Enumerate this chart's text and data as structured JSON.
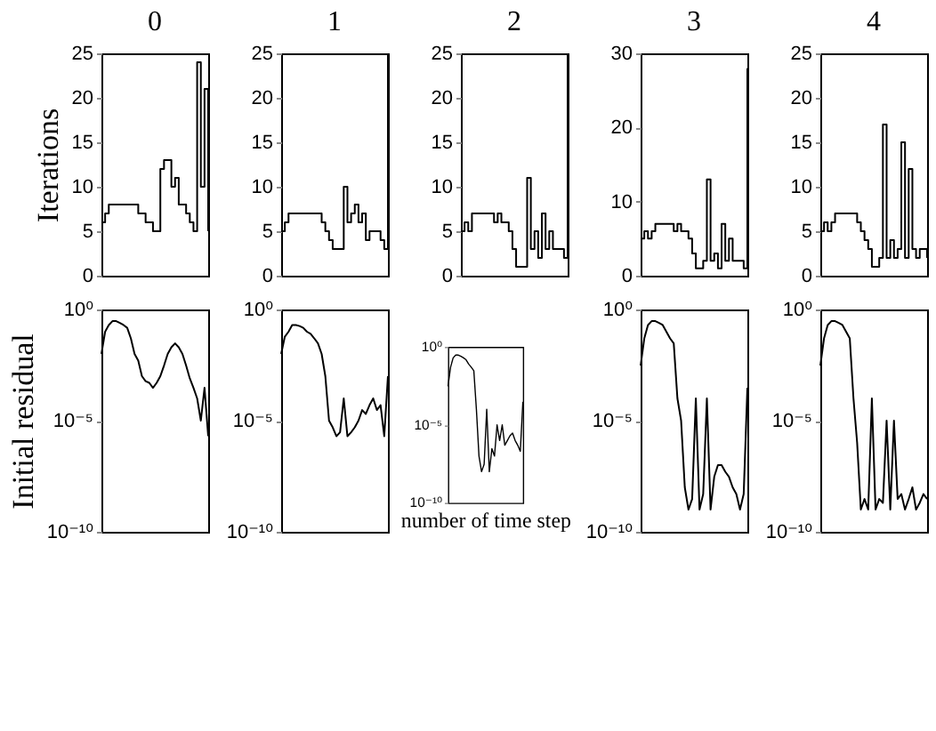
{
  "chart_data": [
    {
      "type": "step",
      "title": "0",
      "ylabel": "Iterations",
      "categories": [
        null,
        null,
        null,
        null,
        null,
        null,
        null,
        null,
        null,
        null,
        null,
        null,
        null,
        null,
        null,
        null,
        null,
        null,
        null,
        null,
        null,
        null,
        null,
        null,
        null,
        null,
        null,
        null,
        null,
        null
      ],
      "values": [
        6,
        7,
        8,
        8,
        8,
        8,
        8,
        8,
        8,
        8,
        7,
        7,
        6,
        6,
        5,
        5,
        12,
        13,
        13,
        10,
        11,
        8,
        8,
        7,
        6,
        5,
        24,
        10,
        21,
        5
      ],
      "color": "#000000",
      "ylim": [
        0,
        25
      ],
      "yticks": [
        0,
        5,
        10,
        15,
        20,
        25
      ],
      "tick_labels": "y"
    },
    {
      "type": "step",
      "title": "1",
      "categories": [
        null,
        null,
        null,
        null,
        null,
        null,
        null,
        null,
        null,
        null,
        null,
        null,
        null,
        null,
        null,
        null,
        null,
        null,
        null,
        null,
        null,
        null,
        null,
        null,
        null,
        null,
        null,
        null,
        null,
        null
      ],
      "values": [
        5,
        6,
        7,
        7,
        7,
        7,
        7,
        7,
        7,
        7,
        7,
        6,
        5,
        4,
        3,
        3,
        3,
        10,
        6,
        7,
        8,
        6,
        7,
        4,
        5,
        5,
        5,
        4,
        3,
        25
      ],
      "color": "#000000",
      "ylim": [
        0,
        25
      ],
      "yticks": [
        0,
        5,
        10,
        15,
        20,
        25
      ],
      "tick_labels": "y"
    },
    {
      "type": "step",
      "title": "2",
      "categories": [
        null,
        null,
        null,
        null,
        null,
        null,
        null,
        null,
        null,
        null,
        null,
        null,
        null,
        null,
        null,
        null,
        null,
        null,
        null,
        null,
        null,
        null,
        null,
        null,
        null,
        null,
        null,
        null,
        null,
        null
      ],
      "values": [
        5,
        6,
        5,
        7,
        7,
        7,
        7,
        7,
        7,
        6,
        7,
        6,
        6,
        5,
        3,
        1,
        1,
        1,
        11,
        3,
        5,
        2,
        7,
        3,
        5,
        3,
        3,
        3,
        2,
        25
      ],
      "color": "#000000",
      "ylim": [
        0,
        25
      ],
      "yticks": [
        0,
        5,
        10,
        15,
        20,
        25
      ],
      "tick_labels": "y"
    },
    {
      "type": "step",
      "title": "3",
      "categories": [
        null,
        null,
        null,
        null,
        null,
        null,
        null,
        null,
        null,
        null,
        null,
        null,
        null,
        null,
        null,
        null,
        null,
        null,
        null,
        null,
        null,
        null,
        null,
        null,
        null,
        null,
        null,
        null,
        null,
        null
      ],
      "values": [
        5,
        6,
        5,
        6,
        7,
        7,
        7,
        7,
        7,
        6,
        7,
        6,
        6,
        5,
        3,
        1,
        1,
        2,
        13,
        2,
        3,
        1,
        7,
        2,
        5,
        2,
        2,
        2,
        1,
        28
      ],
      "color": "#000000",
      "ylim": [
        0,
        30
      ],
      "yticks": [
        0,
        10,
        20,
        30
      ],
      "tick_labels": "y"
    },
    {
      "type": "step",
      "title": "4",
      "categories": [
        null,
        null,
        null,
        null,
        null,
        null,
        null,
        null,
        null,
        null,
        null,
        null,
        null,
        null,
        null,
        null,
        null,
        null,
        null,
        null,
        null,
        null,
        null,
        null,
        null,
        null,
        null,
        null,
        null,
        null
      ],
      "values": [
        5,
        6,
        5,
        6,
        7,
        7,
        7,
        7,
        7,
        7,
        6,
        5,
        4,
        3,
        1,
        1,
        2,
        17,
        2,
        4,
        2,
        3,
        15,
        2,
        12,
        3,
        2,
        3,
        3,
        2
      ],
      "color": "#000000",
      "ylim": [
        0,
        25
      ],
      "yticks": [
        0,
        5,
        10,
        15,
        20,
        25
      ],
      "tick_labels": "y"
    },
    {
      "type": "line",
      "ylabel": "Initial residual",
      "log": true,
      "categories": [
        null,
        null,
        null,
        null,
        null,
        null,
        null,
        null,
        null,
        null,
        null,
        null,
        null,
        null,
        null,
        null,
        null,
        null,
        null,
        null,
        null,
        null,
        null,
        null,
        null,
        null,
        null,
        null,
        null,
        null
      ],
      "values": [
        0.01,
        0.1,
        0.2,
        0.3,
        0.3,
        0.25,
        0.2,
        0.15,
        0.05,
        0.01,
        0.005,
        0.001,
        0.0006,
        0.0005,
        0.0003,
        0.0005,
        0.001,
        0.003,
        0.01,
        0.02,
        0.03,
        0.02,
        0.01,
        0.003,
        0.0008,
        0.0003,
        0.0001,
        1e-05,
        0.0003,
        2e-06
      ],
      "color": "#000000",
      "ylim": [
        1e-10,
        1
      ],
      "yticks": [
        {
          "value": 1e-10,
          "label": "10⁻¹⁰"
        },
        {
          "value": 1e-05,
          "label": "10⁻⁵"
        },
        {
          "value": 1,
          "label": "10⁰"
        }
      ],
      "tick_labels": "y"
    },
    {
      "type": "line",
      "log": true,
      "categories": [
        null,
        null,
        null,
        null,
        null,
        null,
        null,
        null,
        null,
        null,
        null,
        null,
        null,
        null,
        null,
        null,
        null,
        null,
        null,
        null,
        null,
        null,
        null,
        null,
        null,
        null,
        null,
        null,
        null,
        null
      ],
      "values": [
        0.01,
        0.06,
        0.1,
        0.2,
        0.2,
        0.18,
        0.15,
        0.1,
        0.08,
        0.05,
        0.03,
        0.01,
        0.001,
        1e-05,
        5e-06,
        2e-06,
        3e-06,
        0.0001,
        2e-06,
        3e-06,
        5e-06,
        1e-05,
        3e-05,
        2e-05,
        5e-05,
        0.0001,
        3e-05,
        5e-05,
        2e-06,
        0.001
      ],
      "color": "#000000",
      "ylim": [
        1e-10,
        1
      ],
      "yticks": [
        {
          "value": 1e-10,
          "label": "10⁻¹⁰"
        },
        {
          "value": 1e-05,
          "label": "10⁻⁵"
        },
        {
          "value": 1,
          "label": "10⁰"
        }
      ],
      "tick_labels": "y"
    },
    {
      "type": "line",
      "xlabel": "number of time step",
      "log": true,
      "categories": [
        null,
        null,
        null,
        null,
        null,
        null,
        null,
        null,
        null,
        null,
        null,
        null,
        null,
        null,
        null,
        null,
        null,
        null,
        null,
        null,
        null,
        null,
        null,
        null,
        null,
        null,
        null,
        null,
        null,
        null
      ],
      "values": [
        0.003,
        0.05,
        0.2,
        0.3,
        0.3,
        0.25,
        0.2,
        0.15,
        0.08,
        0.05,
        0.03,
        0.0001,
        1e-07,
        1e-08,
        3e-08,
        0.0001,
        1e-08,
        3e-07,
        1e-07,
        1e-05,
        1e-06,
        1e-05,
        5e-07,
        1e-06,
        2e-06,
        3e-06,
        1e-06,
        5e-07,
        2e-07,
        0.0003
      ],
      "color": "#000000",
      "ylim": [
        1e-10,
        1
      ],
      "yticks": [
        {
          "value": 1e-10,
          "label": "10⁻¹⁰"
        },
        {
          "value": 1e-05,
          "label": "10⁻⁵"
        },
        {
          "value": 1,
          "label": "10⁰"
        }
      ],
      "tick_labels": "y"
    },
    {
      "type": "line",
      "log": true,
      "categories": [
        null,
        null,
        null,
        null,
        null,
        null,
        null,
        null,
        null,
        null,
        null,
        null,
        null,
        null,
        null,
        null,
        null,
        null,
        null,
        null,
        null,
        null,
        null,
        null,
        null,
        null,
        null,
        null,
        null,
        null
      ],
      "values": [
        0.003,
        0.05,
        0.2,
        0.3,
        0.3,
        0.25,
        0.2,
        0.1,
        0.05,
        0.03,
        0.0001,
        1e-05,
        1e-08,
        1e-09,
        3e-09,
        0.0001,
        1e-09,
        5e-09,
        0.0001,
        1e-09,
        3e-08,
        1e-07,
        1e-07,
        5e-08,
        3e-08,
        1e-08,
        5e-09,
        1e-09,
        5e-09,
        0.0003
      ],
      "color": "#000000",
      "ylim": [
        1e-10,
        1
      ],
      "yticks": [
        {
          "value": 1e-10,
          "label": "10⁻¹⁰"
        },
        {
          "value": 1e-05,
          "label": "10⁻⁵"
        },
        {
          "value": 1,
          "label": "10⁰"
        }
      ],
      "tick_labels": "y"
    },
    {
      "type": "line",
      "log": true,
      "categories": [
        null,
        null,
        null,
        null,
        null,
        null,
        null,
        null,
        null,
        null,
        null,
        null,
        null,
        null,
        null,
        null,
        null,
        null,
        null,
        null,
        null,
        null,
        null,
        null,
        null,
        null,
        null,
        null,
        null,
        null
      ],
      "values": [
        0.003,
        0.05,
        0.2,
        0.3,
        0.3,
        0.25,
        0.2,
        0.1,
        0.05,
        0.0001,
        1e-06,
        1e-09,
        3e-09,
        1e-09,
        0.0001,
        1e-09,
        3e-09,
        2e-09,
        1e-05,
        1e-09,
        1e-05,
        3e-09,
        5e-09,
        1e-09,
        3e-09,
        1e-08,
        1e-09,
        2e-09,
        5e-09,
        3e-09
      ],
      "color": "#000000",
      "ylim": [
        1e-10,
        1
      ],
      "yticks": [
        {
          "value": 1e-10,
          "label": "10⁻¹⁰"
        },
        {
          "value": 1e-05,
          "label": "10⁻⁵"
        },
        {
          "value": 1,
          "label": "10⁰"
        }
      ],
      "tick_labels": "y"
    }
  ]
}
